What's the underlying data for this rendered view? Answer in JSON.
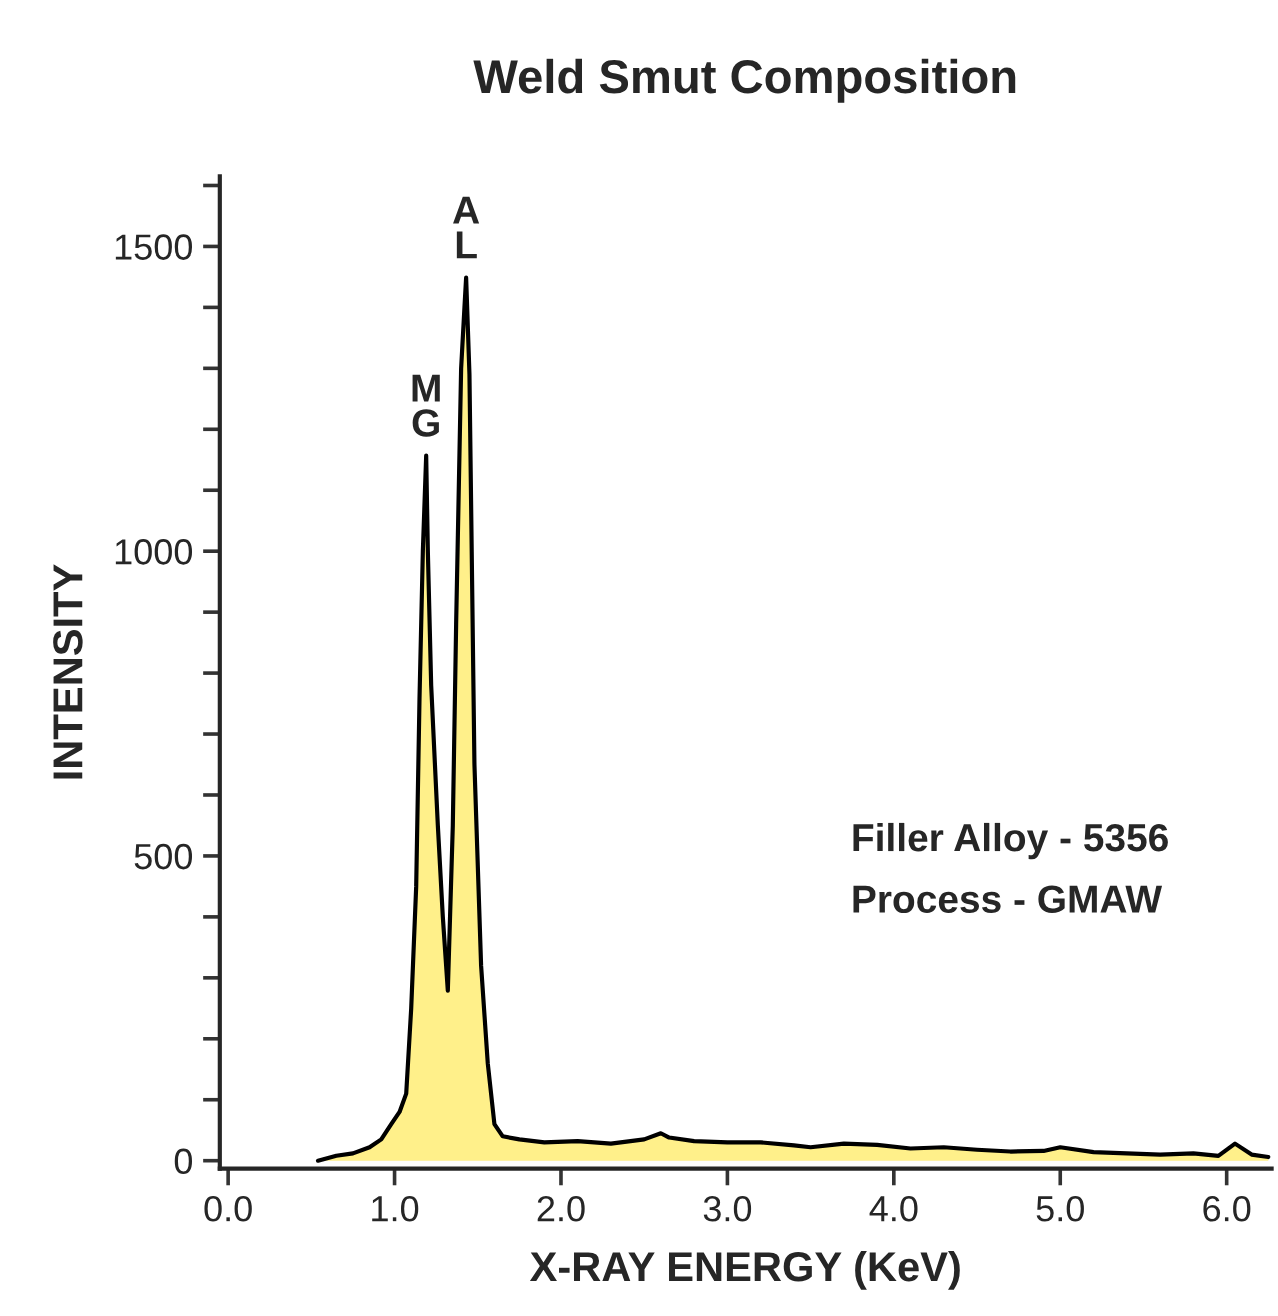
{
  "chart_data": {
    "type": "area",
    "title": "Weld Smut Composition",
    "xlabel": "X-RAY ENERGY (KeV)",
    "ylabel": "INTENSITY",
    "xlim": [
      -0.05,
      6.27
    ],
    "ylim": [
      -13,
      1615
    ],
    "xticks": [
      {
        "value": 0,
        "label": "0.0"
      },
      {
        "value": 1,
        "label": "1.0"
      },
      {
        "value": 2,
        "label": "2.0"
      },
      {
        "value": 3,
        "label": "3.0"
      },
      {
        "value": 4,
        "label": "4.0"
      },
      {
        "value": 5,
        "label": "5.0"
      },
      {
        "value": 6,
        "label": "6.0"
      }
    ],
    "yticks": [
      0,
      {
        "value": 100,
        "label": null
      },
      {
        "value": 200,
        "label": null
      },
      {
        "value": 300,
        "label": null
      },
      {
        "value": 400,
        "label": null
      },
      500,
      {
        "value": 600,
        "label": null
      },
      {
        "value": 700,
        "label": null
      },
      {
        "value": 800,
        "label": null
      },
      {
        "value": 900,
        "label": null
      },
      1000,
      {
        "value": 1100,
        "label": null
      },
      {
        "value": 1200,
        "label": null
      },
      {
        "value": 1300,
        "label": null
      },
      {
        "value": 1400,
        "label": null
      },
      1500,
      {
        "value": 1600,
        "label": null
      }
    ],
    "grid": false,
    "legend": false,
    "series": [
      {
        "color": "#fff08a",
        "x": [
          0.54,
          0.65,
          0.75,
          0.85,
          0.92,
          0.98,
          1.03,
          1.07,
          1.1,
          1.13,
          1.15,
          1.17,
          1.19,
          1.2,
          1.22,
          1.26,
          1.29,
          1.32,
          1.35,
          1.37,
          1.4,
          1.42,
          1.43,
          1.45,
          1.48,
          1.52,
          1.56,
          1.6,
          1.65,
          1.75,
          1.9,
          2.1,
          2.3,
          2.5,
          2.6,
          2.65,
          2.8,
          3.0,
          3.2,
          3.4,
          3.5,
          3.7,
          3.9,
          4.1,
          4.3,
          4.5,
          4.7,
          4.9,
          5.0,
          5.2,
          5.4,
          5.6,
          5.8,
          5.95,
          6.05,
          6.15,
          6.25
        ],
        "values": [
          0,
          8,
          12,
          22,
          35,
          60,
          80,
          110,
          250,
          450,
          760,
          1000,
          1157,
          1000,
          780,
          550,
          400,
          279,
          550,
          880,
          1300,
          1400,
          1449,
          1290,
          650,
          320,
          160,
          60,
          40,
          35,
          30,
          32,
          28,
          35,
          45,
          38,
          32,
          30,
          30,
          25,
          22,
          28,
          26,
          20,
          22,
          18,
          15,
          16,
          22,
          14,
          12,
          10,
          12,
          8,
          28,
          10,
          6
        ]
      }
    ],
    "annotations": [
      {
        "text": "M\nG",
        "x": 1.19,
        "y": 1157
      },
      {
        "text": "A\nL",
        "x": 1.43,
        "y": 1449
      },
      "Filler Alloy - 5356",
      "Process - GMAW"
    ]
  }
}
